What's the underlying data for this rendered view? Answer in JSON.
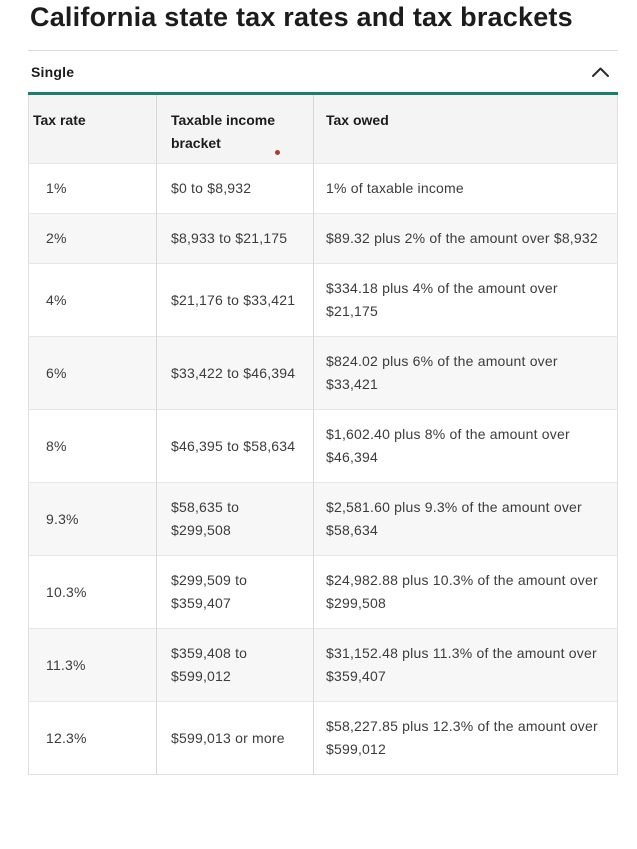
{
  "page": {
    "title": "California state tax rates and tax brackets"
  },
  "accordion": {
    "label": "Single",
    "chevron_icon": "chevron-up",
    "state": "expanded"
  },
  "table": {
    "columns": [
      "Tax rate",
      "Taxable income bracket",
      "Tax owed"
    ],
    "marker_icon": "red-dot-marker",
    "rows": [
      [
        "1%",
        "$0 to $8,932",
        "1% of taxable income"
      ],
      [
        "2%",
        "$8,933 to $21,175",
        "$89.32 plus 2% of the amount over $8,932"
      ],
      [
        "4%",
        "$21,176 to $33,421",
        "$334.18 plus 4% of the amount over $21,175"
      ],
      [
        "6%",
        "$33,422 to $46,394",
        "$824.02 plus 6% of the amount over $33,421"
      ],
      [
        "8%",
        "$46,395 to $58,634",
        "$1,602.40 plus 8% of the amount over $46,394"
      ],
      [
        "9.3%",
        "$58,635 to $299,508",
        "$2,581.60 plus 9.3% of the amount over $58,634"
      ],
      [
        "10.3%",
        "$299,509 to $359,407",
        "$24,982.88 plus 10.3% of the amount over $299,508"
      ],
      [
        "11.3%",
        "$359,408 to $599,012",
        "$31,152.48 plus 11.3% of the amount over $359,407"
      ],
      [
        "12.3%",
        "$599,013 or more",
        "$58,227.85 plus 12.3% of the amount over $599,012"
      ]
    ]
  },
  "colors": {
    "accent_teal": "#17816b",
    "marker_red": "#b5382f",
    "header_bg": "#f4f4f4",
    "stripe_bg": "#f7f7f7"
  }
}
